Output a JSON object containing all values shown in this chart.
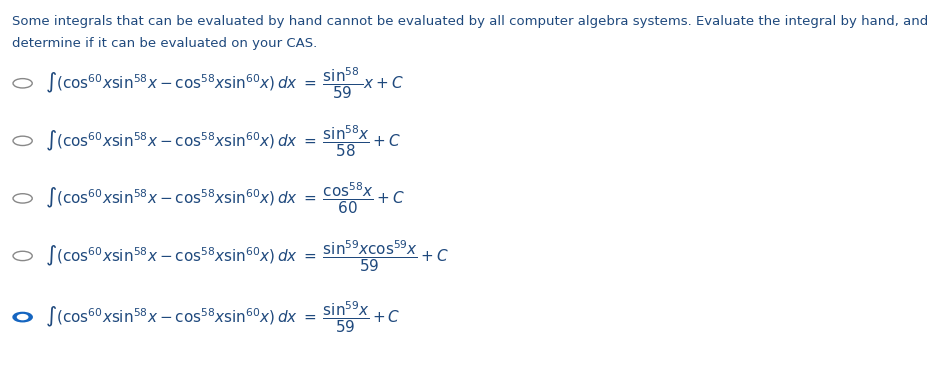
{
  "title_text": "Some integrals that can be evaluated by hand cannot be evaluated by all computer algebra systems. Evaluate the integral by hand, and\ndetermine if it can be evaluated on your CAS.",
  "title_color": "#1F497D",
  "bg_color": "#ffffff",
  "options": [
    {
      "selected": false,
      "lhs": "$\\int(\\cos^{60}\\!x\\sin^{58}\\!x - \\cos^{58}\\!x\\sin^{60}\\!x)\\,dx$",
      "rhs": "$\\dfrac{\\sin^{58}}{59}x + C$"
    },
    {
      "selected": false,
      "lhs": "$\\int(\\cos^{60}\\!x\\sin^{58}\\!x - \\cos^{58}\\!x\\sin^{60}\\!x)\\,dx$",
      "rhs": "$\\dfrac{\\sin^{58}\\!x}{58} + C$"
    },
    {
      "selected": false,
      "lhs": "$\\int(\\cos^{60}\\!x\\sin^{58}\\!x - \\cos^{58}\\!x\\sin^{60}\\!x)\\,dx$",
      "rhs": "$\\dfrac{\\cos^{58}\\!x}{60} + C$"
    },
    {
      "selected": false,
      "lhs": "$\\int(\\cos^{60}\\!x\\sin^{58}\\!x - \\cos^{58}\\!x\\sin^{60}\\!x)\\,dx$",
      "rhs": "$\\dfrac{\\sin^{59}\\!x\\cos^{59}\\!x}{59} + C$"
    },
    {
      "selected": true,
      "lhs": "$\\int(\\cos^{60}\\!x\\sin^{58}\\!x - \\cos^{58}\\!x\\sin^{60}\\!x)\\,dx$",
      "rhs": "$\\dfrac{\\sin^{59}\\!x}{59} + C$"
    }
  ],
  "radio_color_empty": "#888888",
  "radio_color_filled": "#1565C0",
  "math_color": "#1F497D",
  "figsize": [
    9.41,
    3.68
  ],
  "dpi": 100
}
